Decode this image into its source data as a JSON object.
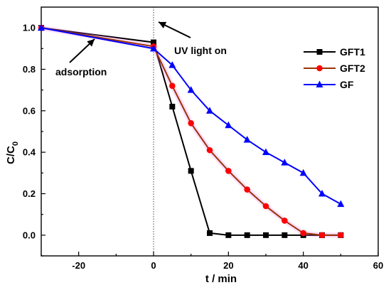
{
  "chart_data": {
    "type": "line",
    "title": "",
    "xlabel": "t / min",
    "ylabel_main": "C/C",
    "ylabel_sub": "0",
    "xlim": [
      -30,
      60
    ],
    "ylim": [
      -0.1,
      1.1
    ],
    "xticks": [
      -20,
      0,
      20,
      40,
      60
    ],
    "yticks": [
      0.0,
      0.2,
      0.4,
      0.6,
      0.8,
      1.0
    ],
    "xtick_labels": [
      "-20",
      "0",
      "20",
      "40",
      "60"
    ],
    "ytick_labels": [
      "0.0",
      "0.2",
      "0.4",
      "0.6",
      "0.8",
      "1.0"
    ],
    "grid": false,
    "legend_position": "top-right",
    "vline_x": 0,
    "series": [
      {
        "name": "GFT1",
        "color": "#000000",
        "marker": "square",
        "x": [
          -30,
          0,
          5,
          10,
          15,
          20,
          25,
          30,
          35,
          40,
          45,
          50
        ],
        "y": [
          1.0,
          0.93,
          0.62,
          0.31,
          0.01,
          0.0,
          0.0,
          0.0,
          0.0,
          0.0,
          0.0,
          0.0
        ]
      },
      {
        "name": "GFT2",
        "color": "#ff0000",
        "line_color": "#993300",
        "marker": "circle",
        "x": [
          -30,
          0,
          5,
          10,
          15,
          20,
          25,
          30,
          35,
          40,
          45,
          50
        ],
        "y": [
          1.0,
          0.91,
          0.72,
          0.54,
          0.41,
          0.31,
          0.22,
          0.14,
          0.07,
          0.01,
          0.0,
          0.0
        ]
      },
      {
        "name": "GF",
        "color": "#0000ff",
        "marker": "triangle",
        "x": [
          -30,
          0,
          5,
          10,
          15,
          20,
          25,
          30,
          35,
          40,
          45,
          50
        ],
        "y": [
          1.0,
          0.9,
          0.82,
          0.7,
          0.6,
          0.53,
          0.46,
          0.4,
          0.35,
          0.3,
          0.2,
          0.15
        ]
      }
    ],
    "annotations": [
      {
        "text": "adsorption"
      },
      {
        "text": "UV light on"
      }
    ]
  }
}
